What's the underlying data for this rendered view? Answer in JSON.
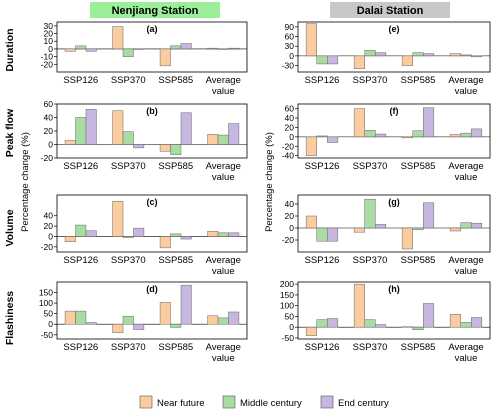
{
  "colors": {
    "near": "#fccca1",
    "middle": "#a8dca2",
    "end": "#c7b7e0",
    "nenjiang_header": "#9bef9b",
    "dalai_header": "#c8c8c8"
  },
  "stations": [
    {
      "title": "Nenjiang Station"
    },
    {
      "title": "Dalai Station"
    }
  ],
  "rows": [
    {
      "label": "Duration"
    },
    {
      "label": "Peak flow"
    },
    {
      "label": "Volume"
    },
    {
      "label": "Flashiness"
    }
  ],
  "ylabel": "Percentage change (%)",
  "legend": [
    {
      "name": "Near future"
    },
    {
      "name": "Middle century"
    },
    {
      "name": "End century"
    }
  ],
  "chart_data": [
    {
      "panel": "(a)",
      "type": "bar",
      "title": "Nenjiang Station",
      "ylabel": "Duration",
      "categories": [
        "SSP126",
        "SSP370",
        "SSP585",
        "Average\nvalue"
      ],
      "ylim": [
        -30,
        35
      ],
      "yticks": [
        -20,
        -10,
        0,
        10,
        20,
        30
      ],
      "series": [
        {
          "name": "Near future",
          "values": [
            -3,
            29,
            -22,
            1
          ]
        },
        {
          "name": "Middle century",
          "values": [
            4,
            -10,
            4,
            0
          ]
        },
        {
          "name": "End century",
          "values": [
            -3,
            0,
            7,
            1
          ]
        }
      ]
    },
    {
      "panel": "(b)",
      "type": "bar",
      "title": "",
      "ylabel": "Peak flow",
      "categories": [
        "SSP126",
        "SSP370",
        "SSP585",
        "Average\nvalue"
      ],
      "ylim": [
        -20,
        60
      ],
      "yticks": [
        -20,
        0,
        20,
        40,
        60
      ],
      "series": [
        {
          "name": "Near future",
          "values": [
            6,
            50,
            -10,
            15
          ]
        },
        {
          "name": "Middle century",
          "values": [
            40,
            19,
            -15,
            14
          ]
        },
        {
          "name": "End century",
          "values": [
            52,
            -5,
            47,
            31
          ]
        }
      ]
    },
    {
      "panel": "(c)",
      "type": "bar",
      "title": "",
      "ylabel": "Volume",
      "categories": [
        "SSP126",
        "SSP370",
        "SSP585",
        "Average\nvalue"
      ],
      "ylim": [
        -30,
        80
      ],
      "yticks": [
        -20,
        0,
        20,
        40
      ],
      "series": [
        {
          "name": "Near future",
          "values": [
            -10,
            68,
            -22,
            10
          ]
        },
        {
          "name": "Middle century",
          "values": [
            22,
            -2,
            5,
            7
          ]
        },
        {
          "name": "End century",
          "values": [
            11,
            16,
            -5,
            7
          ]
        }
      ]
    },
    {
      "panel": "(d)",
      "type": "bar",
      "title": "",
      "ylabel": "Flashiness",
      "categories": [
        "SSP126",
        "SSP370",
        "SSP585",
        "Average\nvalue"
      ],
      "ylim": [
        -70,
        200
      ],
      "yticks": [
        -50,
        0,
        50,
        100,
        150
      ],
      "series": [
        {
          "name": "Near future",
          "values": [
            62,
            -40,
            103,
            40
          ]
        },
        {
          "name": "Middle century",
          "values": [
            62,
            38,
            -15,
            30
          ]
        },
        {
          "name": "End century",
          "values": [
            8,
            -25,
            185,
            58
          ]
        }
      ]
    },
    {
      "panel": "(e)",
      "type": "bar",
      "title": "Dalai Station",
      "ylabel": "",
      "categories": [
        "SSP126",
        "SSP370",
        "SSP585",
        "Average\nvalue"
      ],
      "ylim": [
        -50,
        105
      ],
      "yticks": [
        -30,
        0,
        30,
        60,
        90
      ],
      "series": [
        {
          "name": "Near future",
          "values": [
            100,
            -40,
            -30,
            7
          ]
        },
        {
          "name": "Middle century",
          "values": [
            -25,
            17,
            10,
            3
          ]
        },
        {
          "name": "End century",
          "values": [
            -25,
            10,
            7,
            -3
          ]
        }
      ]
    },
    {
      "panel": "(f)",
      "type": "bar",
      "title": "",
      "ylabel": "",
      "categories": [
        "SSP126",
        "SSP370",
        "SSP585",
        "Average\nvalue"
      ],
      "ylim": [
        -45,
        70
      ],
      "yticks": [
        -40,
        -20,
        0,
        20,
        40,
        60
      ],
      "series": [
        {
          "name": "Near future",
          "values": [
            -40,
            60,
            -2,
            5
          ]
        },
        {
          "name": "Middle century",
          "values": [
            2,
            14,
            13,
            8
          ]
        },
        {
          "name": "End century",
          "values": [
            -12,
            6,
            62,
            17
          ]
        }
      ]
    },
    {
      "panel": "(g)",
      "type": "bar",
      "title": "",
      "ylabel": "",
      "categories": [
        "SSP126",
        "SSP370",
        "SSP585",
        "Average\nvalue"
      ],
      "ylim": [
        -40,
        55
      ],
      "yticks": [
        -20,
        0,
        20,
        40
      ],
      "series": [
        {
          "name": "Near future",
          "values": [
            20,
            -7,
            -35,
            -5
          ]
        },
        {
          "name": "Middle century",
          "values": [
            -22,
            48,
            -3,
            9
          ]
        },
        {
          "name": "End century",
          "values": [
            -22,
            6,
            42,
            8
          ]
        }
      ]
    },
    {
      "panel": "(h)",
      "type": "bar",
      "title": "",
      "ylabel": "",
      "categories": [
        "SSP126",
        "SSP370",
        "SSP585",
        "Average\nvalue"
      ],
      "ylim": [
        -55,
        210
      ],
      "yticks": [
        -50,
        0,
        50,
        100,
        150,
        200
      ],
      "series": [
        {
          "name": "Near future",
          "values": [
            -40,
            200,
            2,
            60
          ]
        },
        {
          "name": "Middle century",
          "values": [
            35,
            35,
            -12,
            22
          ]
        },
        {
          "name": "End century",
          "values": [
            40,
            12,
            110,
            45
          ]
        }
      ]
    }
  ]
}
